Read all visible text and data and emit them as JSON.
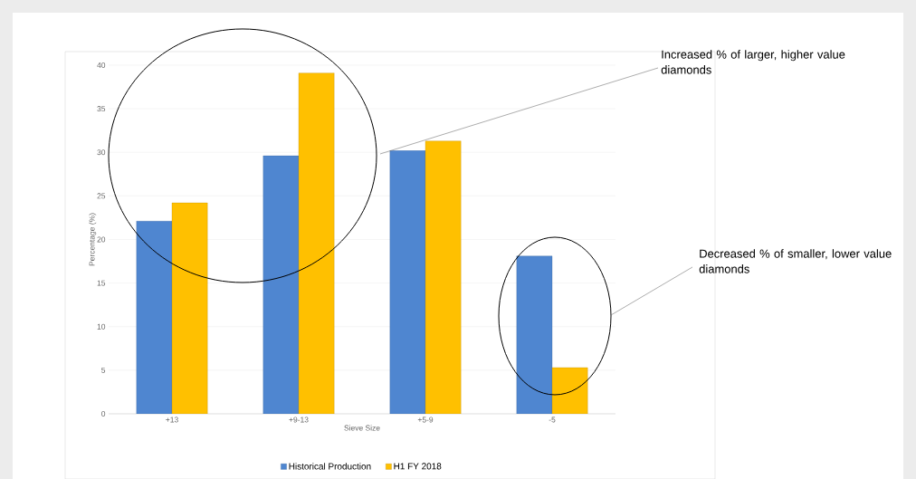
{
  "chart_data": {
    "type": "bar",
    "xlabel": "Sieve Size",
    "ylabel": "Percentage (%)",
    "categories": [
      "+13",
      "+9-13",
      "+5-9",
      "-5"
    ],
    "series": [
      {
        "name": "Historical Production",
        "color": "#4f86d0",
        "values": [
          22.1,
          29.6,
          30.2,
          18.1
        ]
      },
      {
        "name": "H1 FY 2018",
        "color": "#ffc000",
        "values": [
          24.2,
          39.1,
          31.3,
          5.3
        ]
      }
    ],
    "ylim": [
      0,
      40
    ],
    "yticks": [
      0,
      5,
      10,
      15,
      20,
      25,
      30,
      35,
      40
    ],
    "grid": "y",
    "legend": "bottom",
    "annotations": [
      "Increased % of larger, higher value diamonds",
      "Decreased % of smaller, lower value diamonds"
    ]
  }
}
